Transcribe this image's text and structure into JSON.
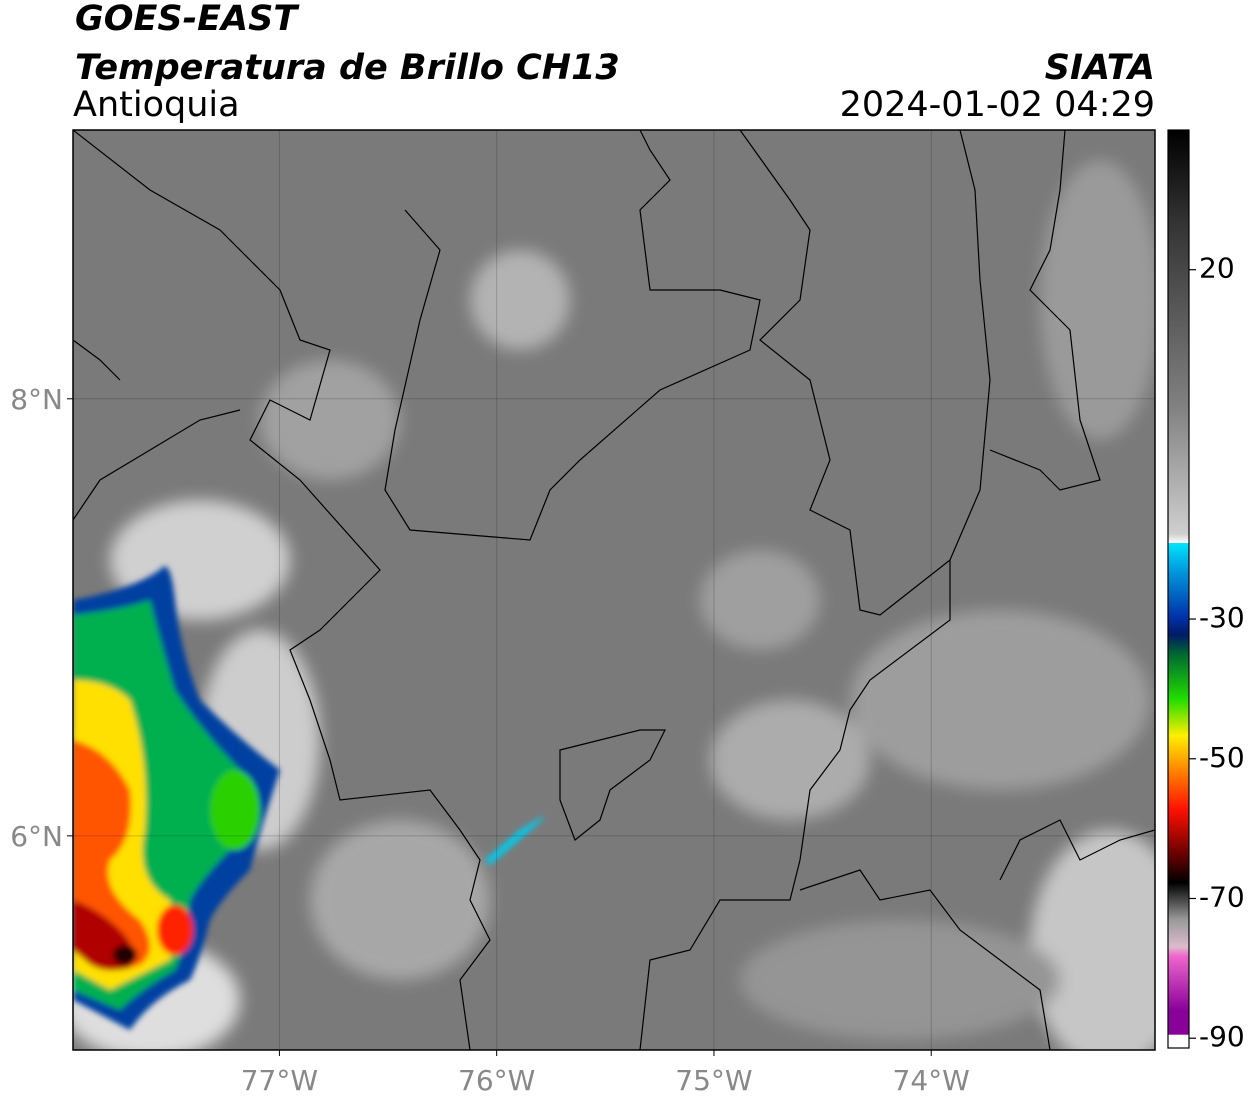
{
  "header": {
    "satellite": "GOES-EAST",
    "product": "Temperatura de Brillo CH13",
    "region": "Antioquia",
    "source": "SIATA",
    "datetime": "2024-01-02 04:29"
  },
  "map": {
    "lon_range": [
      -77.95,
      -72.97
    ],
    "lat_range": [
      5.02,
      9.23
    ],
    "lon_ticks": [
      {
        "value": -77,
        "label": "77°W"
      },
      {
        "value": -76,
        "label": "76°W"
      },
      {
        "value": -75,
        "label": "75°W"
      },
      {
        "value": -74,
        "label": "74°W"
      }
    ],
    "lat_ticks": [
      {
        "value": 8,
        "label": "8°N"
      },
      {
        "value": 6,
        "label": "6°N"
      }
    ],
    "grid": true
  },
  "colorbar": {
    "range": [
      -91.4,
      40
    ],
    "ticks": [
      20,
      -30,
      -50,
      -70,
      -90
    ]
  }
}
